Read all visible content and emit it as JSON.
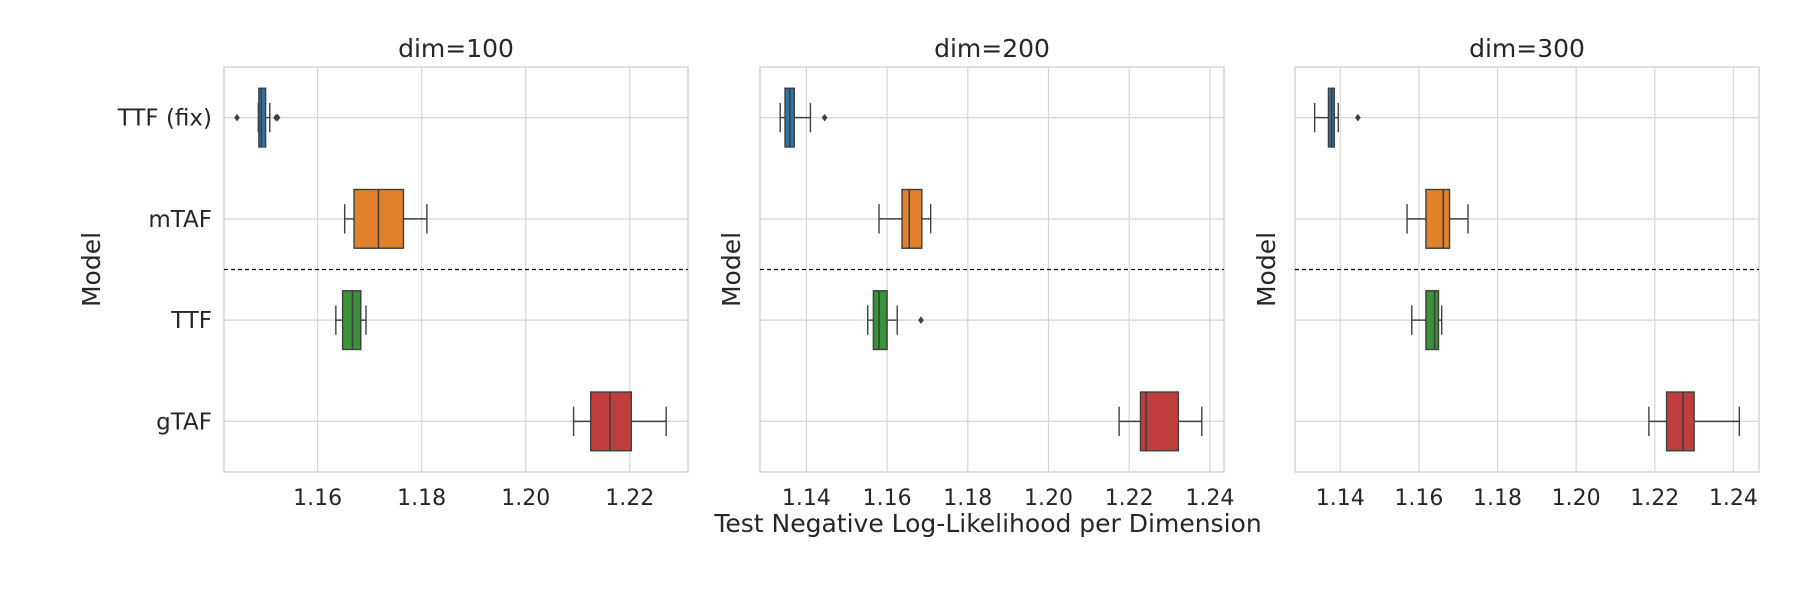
{
  "figure": {
    "xlabel": "Test Negative Log-Likelihood per Dimension"
  },
  "colors": {
    "TTF (fix)": "#3274a1",
    "mTAF": "#e1812c",
    "TTF": "#3a923a",
    "gTAF": "#c03d3e",
    "grid": "#d6d6d6",
    "frame": "#d6d6d6",
    "whisker": "#3f3f3f",
    "divider": "#000000"
  },
  "chart_data": [
    {
      "type": "box",
      "title": "dim=100",
      "ylabel": "Model",
      "xlim": [
        1.142,
        1.2312
      ],
      "xticks": [
        "1.16",
        "1.18",
        "1.20",
        "1.22"
      ],
      "categories": [
        "TTF (fix)",
        "mTAF",
        "TTF",
        "gTAF"
      ],
      "grid": true,
      "divider_between": [
        "mTAF",
        "TTF"
      ],
      "boxes": [
        {
          "name": "TTF (fix)",
          "whisker_low": 1.1486,
          "q1": 1.1487,
          "median": 1.1492,
          "q3": 1.15,
          "whisker_high": 1.1508,
          "outliers": [
            1.1445,
            1.152,
            1.1523
          ]
        },
        {
          "name": "mTAF",
          "whisker_low": 1.1652,
          "q1": 1.167,
          "median": 1.1717,
          "q3": 1.1765,
          "whisker_high": 1.181,
          "outliers": []
        },
        {
          "name": "TTF",
          "whisker_low": 1.1635,
          "q1": 1.1648,
          "median": 1.1667,
          "q3": 1.1683,
          "whisker_high": 1.1693,
          "outliers": []
        },
        {
          "name": "gTAF",
          "whisker_low": 1.2092,
          "q1": 1.2125,
          "median": 1.2162,
          "q3": 1.2203,
          "whisker_high": 1.227,
          "outliers": []
        }
      ]
    },
    {
      "type": "box",
      "title": "dim=200",
      "ylabel": "Model",
      "xlim": [
        1.1285,
        1.2435
      ],
      "xticks": [
        "1.14",
        "1.16",
        "1.18",
        "1.20",
        "1.22",
        "1.24"
      ],
      "categories": [
        "TTF (fix)",
        "mTAF",
        "TTF",
        "gTAF"
      ],
      "grid": true,
      "divider_between": [
        "mTAF",
        "TTF"
      ],
      "boxes": [
        {
          "name": "TTF (fix)",
          "whisker_low": 1.1335,
          "q1": 1.1347,
          "median": 1.1359,
          "q3": 1.137,
          "whisker_high": 1.141,
          "outliers": [
            1.1445
          ]
        },
        {
          "name": "mTAF",
          "whisker_low": 1.158,
          "q1": 1.1637,
          "median": 1.1655,
          "q3": 1.1686,
          "whisker_high": 1.1708,
          "outliers": []
        },
        {
          "name": "TTF",
          "whisker_low": 1.1552,
          "q1": 1.1566,
          "median": 1.158,
          "q3": 1.16,
          "whisker_high": 1.1625,
          "outliers": [
            1.1684
          ]
        },
        {
          "name": "gTAF",
          "whisker_low": 1.2175,
          "q1": 1.2228,
          "median": 1.2242,
          "q3": 1.2322,
          "whisker_high": 1.238,
          "outliers": []
        }
      ]
    },
    {
      "type": "box",
      "title": "dim=300",
      "ylabel": "Model",
      "xlim": [
        1.1285,
        1.2465
      ],
      "xticks": [
        "1.14",
        "1.16",
        "1.18",
        "1.20",
        "1.22",
        "1.24"
      ],
      "categories": [
        "TTF (fix)",
        "mTAF",
        "TTF",
        "gTAF"
      ],
      "grid": true,
      "divider_between": [
        "mTAF",
        "TTF"
      ],
      "boxes": [
        {
          "name": "TTF (fix)",
          "whisker_low": 1.1335,
          "q1": 1.137,
          "median": 1.1378,
          "q3": 1.1385,
          "whisker_high": 1.1395,
          "outliers": [
            1.1445
          ]
        },
        {
          "name": "mTAF",
          "whisker_low": 1.157,
          "q1": 1.1618,
          "median": 1.1662,
          "q3": 1.1678,
          "whisker_high": 1.1725,
          "outliers": []
        },
        {
          "name": "TTF",
          "whisker_low": 1.1582,
          "q1": 1.1618,
          "median": 1.164,
          "q3": 1.165,
          "whisker_high": 1.1658,
          "outliers": []
        },
        {
          "name": "gTAF",
          "whisker_low": 1.2185,
          "q1": 1.223,
          "median": 1.2272,
          "q3": 1.23,
          "whisker_high": 1.2415,
          "outliers": []
        }
      ]
    }
  ]
}
